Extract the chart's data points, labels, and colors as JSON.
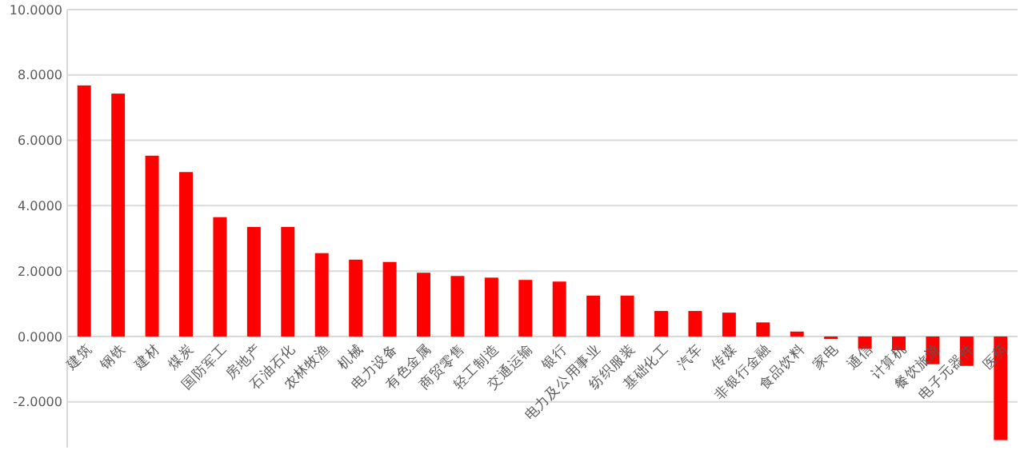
{
  "chart_data": {
    "type": "bar",
    "categories": [
      "建筑",
      "钢铁",
      "建材",
      "煤炭",
      "国防军工",
      "房地产",
      "石油石化",
      "农林牧渔",
      "机械",
      "电力设备",
      "有色金属",
      "商贸零售",
      "轻工制造",
      "交通运输",
      "银行",
      "电力及公用事业",
      "纺织服装",
      "基础化工",
      "汽车",
      "传媒",
      "非银行金融",
      "食品饮料",
      "家电",
      "通信",
      "计算机",
      "餐饮旅游",
      "电子元器件",
      "医药"
    ],
    "values": [
      7.68,
      7.43,
      5.53,
      5.03,
      3.65,
      3.35,
      3.35,
      2.55,
      2.35,
      2.28,
      1.95,
      1.85,
      1.8,
      1.73,
      1.68,
      1.25,
      1.25,
      0.78,
      0.78,
      0.73,
      0.43,
      0.15,
      -0.08,
      -0.38,
      -0.42,
      -0.85,
      -0.9,
      -3.17
    ],
    "color": "#ff0000",
    "ylim": [
      -3.4,
      10
    ],
    "yticks": [
      {
        "value": -2,
        "label": "-2.0000"
      },
      {
        "value": 0,
        "label": "0.0000"
      },
      {
        "value": 2,
        "label": "2.0000"
      },
      {
        "value": 4,
        "label": "4.0000"
      },
      {
        "value": 6,
        "label": "6.0000"
      },
      {
        "value": 8,
        "label": "8.0000"
      },
      {
        "value": 10,
        "label": "10.0000"
      }
    ],
    "grid": "y"
  }
}
